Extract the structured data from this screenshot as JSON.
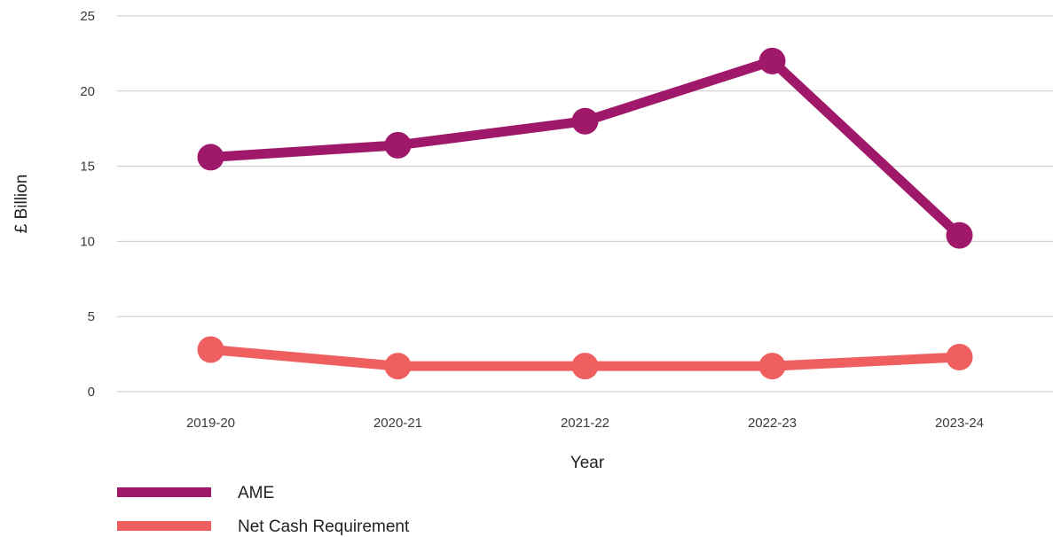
{
  "chart_data": {
    "type": "line",
    "categories": [
      "2019-20",
      "2020-21",
      "2021-22",
      "2022-23",
      "2023-24"
    ],
    "series": [
      {
        "name": "AME",
        "values": [
          15.6,
          16.4,
          18.0,
          22.0,
          10.4
        ],
        "color": "#A0186A"
      },
      {
        "name": "Net Cash Requirement",
        "values": [
          2.8,
          1.7,
          1.7,
          1.7,
          2.3
        ],
        "color": "#EF5F5F"
      }
    ],
    "title": "",
    "xlabel": "Year",
    "ylabel": "£ Billion",
    "ylim": [
      0,
      25
    ],
    "yticks": [
      "0",
      "5",
      "10",
      "15",
      "20",
      "25"
    ],
    "grid": true,
    "legend_position": "bottom-left"
  }
}
